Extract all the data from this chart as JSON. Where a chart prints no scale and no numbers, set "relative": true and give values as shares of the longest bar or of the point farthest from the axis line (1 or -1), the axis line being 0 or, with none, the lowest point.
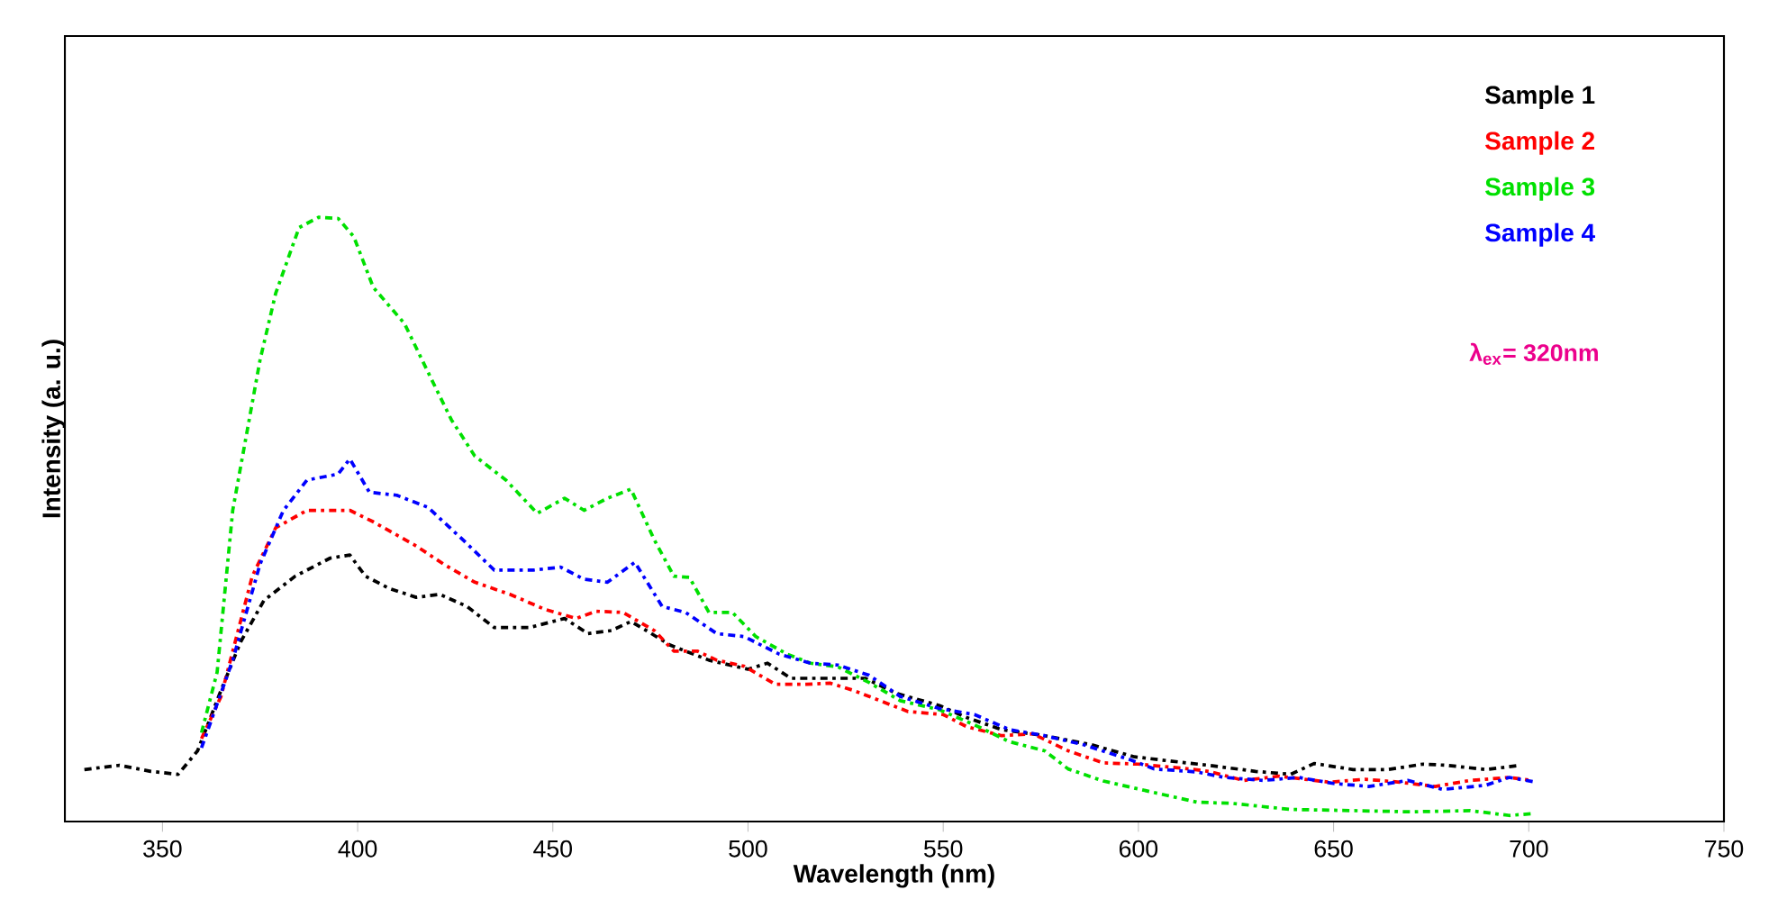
{
  "chart_data": {
    "type": "line",
    "xlabel": "Wavelength (nm)",
    "ylabel": "Intensity (a. u.)",
    "relative": true,
    "xlim": [
      325,
      750
    ],
    "xticks": [
      350,
      400,
      450,
      500,
      550,
      600,
      650,
      700,
      750
    ],
    "legend": "top right",
    "line_style": "dashdot",
    "annotations": [
      "λ$_{ex}$= 320nm"
    ],
    "series": [
      {
        "name": "Sample 1",
        "color": "#000000",
        "x": [
          330,
          339,
          347,
          354,
          359,
          365,
          370,
          376,
          384,
          393,
          398,
          402,
          408,
          415,
          421,
          428,
          435,
          444,
          453,
          459,
          465,
          470,
          474,
          480,
          490,
          500,
          505,
          511,
          521,
          530,
          538,
          549,
          556,
          565,
          576,
          588,
          599,
          611,
          618,
          630,
          639,
          645,
          655,
          664,
          673,
          679,
          689,
          698
        ],
        "values": [
          0.086,
          0.093,
          0.083,
          0.078,
          0.117,
          0.217,
          0.297,
          0.366,
          0.406,
          0.436,
          0.441,
          0.406,
          0.386,
          0.371,
          0.376,
          0.356,
          0.321,
          0.321,
          0.336,
          0.311,
          0.316,
          0.331,
          0.316,
          0.292,
          0.267,
          0.252,
          0.262,
          0.237,
          0.237,
          0.237,
          0.212,
          0.192,
          0.172,
          0.152,
          0.142,
          0.127,
          0.107,
          0.098,
          0.093,
          0.083,
          0.078,
          0.096,
          0.086,
          0.086,
          0.095,
          0.093,
          0.086,
          0.093
        ]
      },
      {
        "name": "Sample 2",
        "color": "#ff0000",
        "x": [
          360,
          365,
          373,
          379,
          387,
          398,
          404,
          415,
          422,
          430,
          439,
          448,
          456,
          461,
          468,
          476,
          481,
          487,
          492,
          499,
          507,
          515,
          521,
          527,
          533,
          541,
          550,
          556,
          565,
          573,
          582,
          591,
          600,
          613,
          618,
          627,
          636,
          649,
          658,
          667,
          676,
          685,
          695,
          701
        ],
        "values": [
          0.137,
          0.207,
          0.406,
          0.486,
          0.515,
          0.515,
          0.496,
          0.456,
          0.426,
          0.396,
          0.376,
          0.351,
          0.336,
          0.348,
          0.346,
          0.316,
          0.282,
          0.282,
          0.267,
          0.257,
          0.227,
          0.227,
          0.229,
          0.217,
          0.202,
          0.182,
          0.177,
          0.157,
          0.142,
          0.145,
          0.117,
          0.097,
          0.095,
          0.087,
          0.083,
          0.068,
          0.075,
          0.065,
          0.07,
          0.065,
          0.058,
          0.068,
          0.073,
          0.068
        ]
      },
      {
        "name": "Sample 3",
        "color": "#00e000",
        "x": [
          360,
          364,
          368,
          375,
          379,
          385,
          390,
          395,
          399,
          404,
          412,
          418,
          424,
          430,
          438,
          446,
          453,
          458,
          464,
          470,
          476,
          481,
          485,
          490,
          496,
          502,
          510,
          516,
          523,
          531,
          539,
          549,
          558,
          567,
          576,
          582,
          591,
          604,
          615,
          624,
          639,
          655,
          670,
          685,
          695,
          701
        ],
        "values": [
          0.147,
          0.247,
          0.515,
          0.764,
          0.874,
          0.983,
          1.0,
          0.998,
          0.968,
          0.884,
          0.824,
          0.744,
          0.665,
          0.605,
          0.565,
          0.51,
          0.535,
          0.515,
          0.535,
          0.55,
          0.466,
          0.406,
          0.404,
          0.346,
          0.346,
          0.306,
          0.277,
          0.262,
          0.256,
          0.23,
          0.2,
          0.185,
          0.16,
          0.132,
          0.117,
          0.087,
          0.067,
          0.048,
          0.032,
          0.03,
          0.02,
          0.018,
          0.016,
          0.018,
          0.01,
          0.013
        ]
      },
      {
        "name": "Sample 4",
        "color": "#0000ff",
        "x": [
          360,
          368,
          375,
          381,
          387,
          395,
          398,
          403,
          410,
          418,
          427,
          435,
          445,
          452,
          458,
          464,
          471,
          478,
          484,
          492,
          499,
          508,
          516,
          523,
          531,
          539,
          549,
          558,
          567,
          576,
          586,
          598,
          604,
          615,
          622,
          632,
          641,
          650,
          659,
          669,
          678,
          689,
          695,
          701
        ],
        "values": [
          0.122,
          0.267,
          0.426,
          0.515,
          0.565,
          0.575,
          0.6,
          0.545,
          0.54,
          0.52,
          0.466,
          0.416,
          0.416,
          0.421,
          0.401,
          0.396,
          0.429,
          0.356,
          0.346,
          0.311,
          0.306,
          0.277,
          0.262,
          0.259,
          0.242,
          0.207,
          0.187,
          0.177,
          0.152,
          0.142,
          0.127,
          0.102,
          0.087,
          0.082,
          0.073,
          0.068,
          0.073,
          0.063,
          0.058,
          0.068,
          0.053,
          0.06,
          0.073,
          0.066
        ]
      }
    ]
  }
}
